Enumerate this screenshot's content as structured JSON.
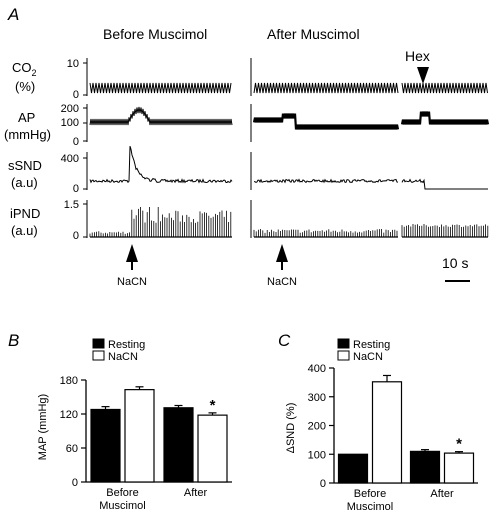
{
  "panel_a": {
    "letter": "A",
    "headers": {
      "before": "Before Muscimol",
      "after": "After Muscimol",
      "hex": "Hex"
    },
    "traces": [
      {
        "id": "co2",
        "label_line1": "CO",
        "label_sub": "2",
        "label_line2": "(%)",
        "ticks": [
          "10",
          "0"
        ]
      },
      {
        "id": "ap",
        "label_line1": "AP",
        "label_line2": "(mmHg)",
        "ticks": [
          "200",
          "100",
          "0"
        ]
      },
      {
        "id": "ssnd",
        "label_line1": "sSND",
        "label_line2": "(a.u)",
        "ticks": [
          "400",
          "0"
        ]
      },
      {
        "id": "ipnd",
        "label_line1": "iPND",
        "label_line2": "(a.u)",
        "ticks": [
          "1.5",
          "0"
        ]
      }
    ],
    "stimulus": [
      "NaCN",
      "NaCN"
    ],
    "scale_bar": "10 s"
  },
  "chart_data": [
    {
      "panel": "B",
      "type": "bar",
      "ylabel": "MAP (mmHg)",
      "ylim": [
        0,
        180
      ],
      "yticks": [
        "0",
        "60",
        "120",
        "180"
      ],
      "categories": [
        [
          "Before",
          "Muscimol"
        ],
        [
          "After"
        ]
      ],
      "series": [
        {
          "name": "Resting",
          "color": "#000000",
          "values": [
            128,
            131
          ],
          "errors": [
            5,
            4
          ]
        },
        {
          "name": "NaCN",
          "color": "#ffffff",
          "values": [
            163,
            118
          ],
          "errors": [
            5,
            4
          ]
        }
      ],
      "significance": [
        {
          "category": 1,
          "series": 1,
          "mark": "*"
        }
      ]
    },
    {
      "panel": "C",
      "type": "bar",
      "ylabel": "ΔSND (%)",
      "ylim": [
        0,
        400
      ],
      "yticks": [
        "0",
        "100",
        "200",
        "300",
        "400"
      ],
      "categories": [
        [
          "Before",
          "Muscimol"
        ],
        [
          "After"
        ]
      ],
      "series": [
        {
          "name": "Resting",
          "color": "#000000",
          "values": [
            100,
            110
          ],
          "errors": [
            0,
            6
          ]
        },
        {
          "name": "NaCN",
          "color": "#ffffff",
          "values": [
            352,
            104
          ],
          "errors": [
            22,
            5
          ]
        }
      ],
      "significance": [
        {
          "category": 1,
          "series": 1,
          "mark": "*"
        }
      ]
    }
  ]
}
